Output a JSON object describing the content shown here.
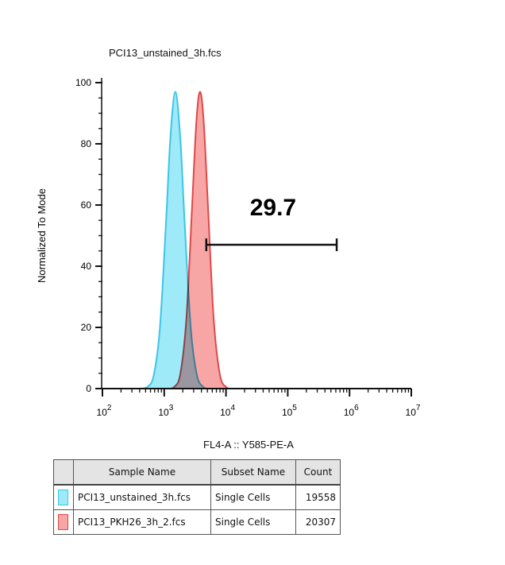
{
  "chart_data": {
    "type": "area",
    "title": "PCI13_unstained_3h.fcs",
    "xlabel": "FL4-A :: Y585-PE-A",
    "ylabel": "Normalized To Mode",
    "xscale": "log",
    "xlim": [
      100,
      10000000
    ],
    "ylim": [
      0,
      100
    ],
    "x_ticks": [
      {
        "base": "10",
        "exp": "2"
      },
      {
        "base": "10",
        "exp": "3"
      },
      {
        "base": "10",
        "exp": "4"
      },
      {
        "base": "10",
        "exp": "5"
      },
      {
        "base": "10",
        "exp": "6"
      },
      {
        "base": "10",
        "exp": "7"
      }
    ],
    "y_ticks": [
      "0",
      "20",
      "40",
      "60",
      "80",
      "100"
    ],
    "grid": false,
    "series": [
      {
        "name": "PCI13_unstained_3h.fcs",
        "color": "#3cc4e8",
        "fill": "#9eeaf9",
        "x": [
          400,
          537,
          676,
          851,
          1072,
          1259,
          1514,
          1820,
          2138,
          2692,
          3388,
          4266,
          5000
        ],
        "y": [
          0,
          0.6,
          4.3,
          19.7,
          54.6,
          82,
          97,
          82,
          54.6,
          19.7,
          4.3,
          0.6,
          0
        ]
      },
      {
        "name": "PCI13_PKH26_3h_2.fcs",
        "color": "#e04848",
        "fill": "#f8a5a5",
        "x": [
          1150,
          1445,
          1820,
          2291,
          2818,
          3311,
          3802,
          4365,
          5129,
          6310,
          7943,
          10000,
          12500
        ],
        "y": [
          0,
          0.5,
          4.7,
          23,
          59,
          87,
          97,
          87,
          59,
          23,
          4.7,
          0.5,
          0
        ]
      }
    ],
    "gate": {
      "label": "29.7",
      "x_start": 4800,
      "x_end": 620000,
      "y": 47
    }
  },
  "legend": {
    "headers": [
      "Sample Name",
      "Subset Name",
      "Count"
    ],
    "rows": [
      {
        "color": "#9eeaf9",
        "border": "#3cc4e8",
        "sample": "PCI13_unstained_3h.fcs",
        "subset": "Single Cells",
        "count": "19558"
      },
      {
        "color": "#f8a5a5",
        "border": "#e04848",
        "sample": "PCI13_PKH26_3h_2.fcs",
        "subset": "Single Cells",
        "count": "20307"
      }
    ]
  }
}
